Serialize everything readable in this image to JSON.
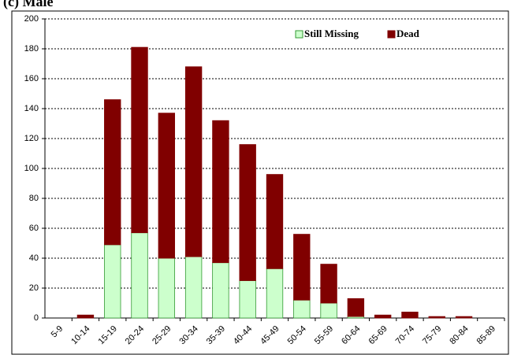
{
  "chart_data": {
    "type": "stacked_bar",
    "title": "(c) Male",
    "categories": [
      "5-9",
      "10-14",
      "15-19",
      "20-24",
      "25-29",
      "30-34",
      "35-39",
      "40-44",
      "45-49",
      "50-54",
      "55-59",
      "60-64",
      "65-69",
      "70-74",
      "75-79",
      "80-84",
      "85-89"
    ],
    "series": [
      {
        "name": "Still Missing",
        "color": "#ccffcc",
        "values": [
          0,
          0,
          49,
          57,
          40,
          41,
          37,
          25,
          33,
          12,
          10,
          1,
          0,
          0,
          0,
          0,
          0
        ]
      },
      {
        "name": "Dead",
        "color": "#800000",
        "values": [
          0,
          2,
          97,
          124,
          97,
          127,
          95,
          91,
          63,
          44,
          26,
          12,
          2,
          4,
          1,
          1,
          0
        ]
      }
    ],
    "ylim": [
      0,
      200
    ],
    "yticks": [
      0,
      20,
      40,
      60,
      80,
      100,
      120,
      140,
      160,
      180,
      200
    ],
    "grid": true,
    "legend": "top-right"
  }
}
